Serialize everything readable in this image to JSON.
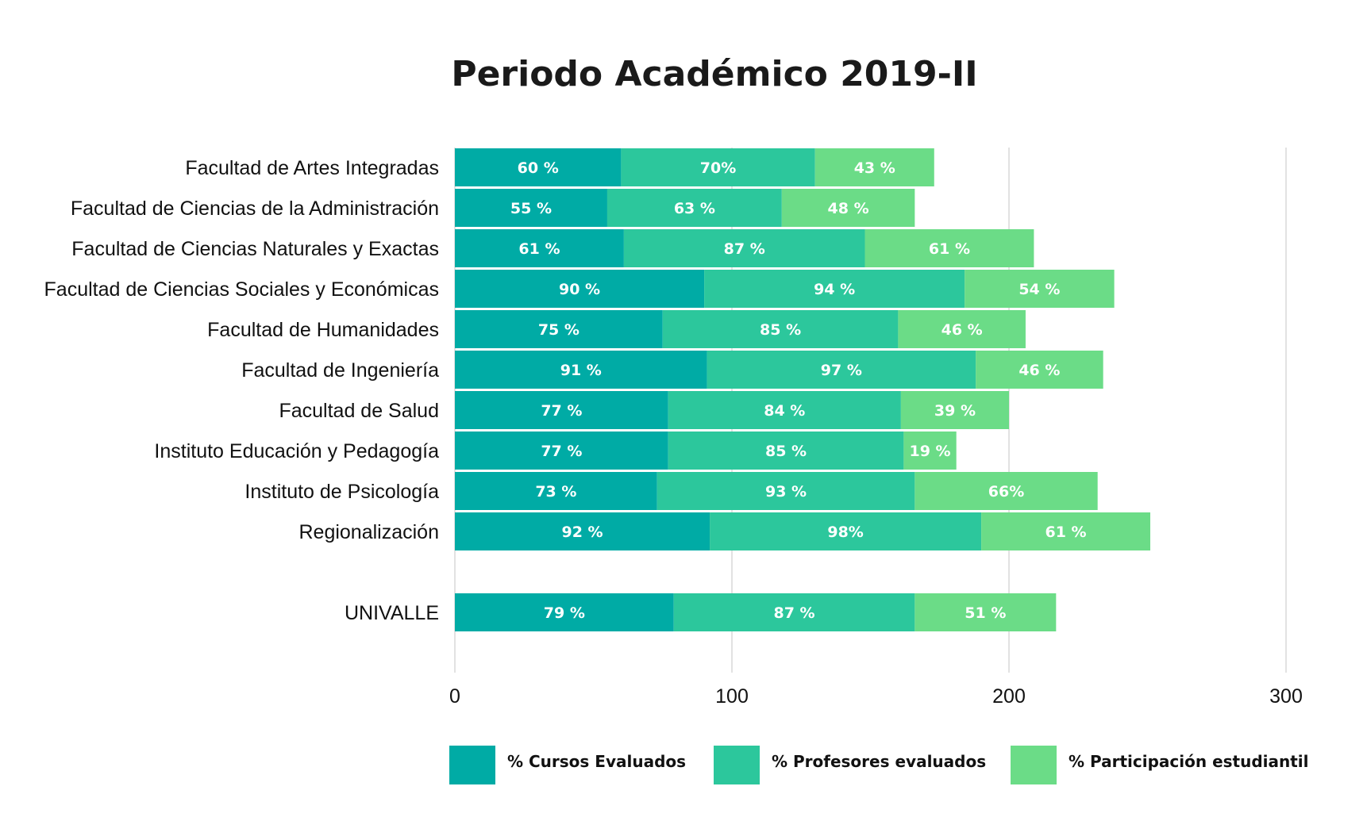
{
  "chart_data": {
    "type": "bar",
    "orientation": "horizontal",
    "stacked": true,
    "title": "Periodo Académico 2019-II",
    "xlabel": "",
    "ylabel": "",
    "xlim": [
      0,
      300
    ],
    "x_ticks": [
      "0",
      "100",
      "200",
      "300"
    ],
    "grid": true,
    "legend_position": "bottom",
    "categories": [
      "Facultad de Artes Integradas",
      "Facultad de Ciencias de la Administración",
      "Facultad de Ciencias Naturales y Exactas",
      "Facultad de Ciencias Sociales y Económicas",
      "Facultad de Humanidades",
      "Facultad de Ingeniería",
      "Facultad de Salud",
      "Instituto Educación y Pedagogía",
      "Instituto de Psicología",
      "Regionalización",
      "UNIVALLE"
    ],
    "series": [
      {
        "name": "% Cursos Evaluados",
        "color": "#00aba5",
        "values": [
          60,
          55,
          61,
          90,
          75,
          91,
          77,
          77,
          73,
          92,
          79
        ],
        "labels": [
          "60 %",
          "55 %",
          "61 %",
          "90 %",
          "75 %",
          "91 %",
          "77 %",
          "77 %",
          "73 %",
          "92 %",
          "79 %"
        ]
      },
      {
        "name": "% Profesores evaluados",
        "color": "#2cc79c",
        "values": [
          70,
          63,
          87,
          94,
          85,
          97,
          84,
          85,
          93,
          98,
          87
        ],
        "labels": [
          "70%",
          "63 %",
          "87 %",
          "94 %",
          "85 %",
          "97 %",
          "84 %",
          "85 %",
          "93 %",
          "98%",
          "87 %"
        ]
      },
      {
        "name": "% Participación estudiantil",
        "color": "#6bdc87",
        "values": [
          43,
          48,
          61,
          54,
          46,
          46,
          39,
          19,
          66,
          61,
          51
        ],
        "labels": [
          "43 %",
          "48 %",
          "61 %",
          "54 %",
          "46 %",
          "46 %",
          "39 %",
          "19 %",
          "66%",
          "61 %",
          "51 %"
        ]
      }
    ]
  }
}
